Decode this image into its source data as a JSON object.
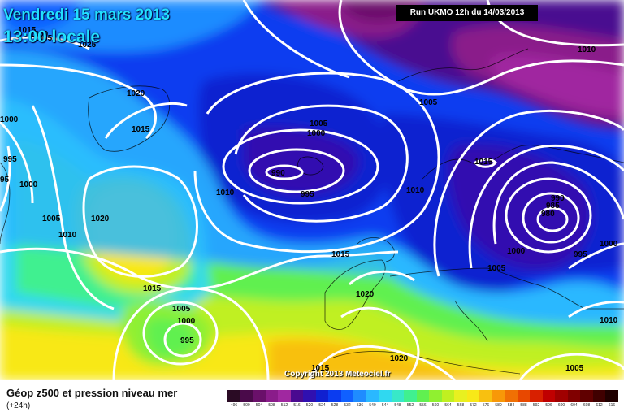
{
  "header": {
    "date": "Vendredi 15 mars 2013",
    "time": "13:00 locale",
    "run": "Run UKMO 12h du 14/03/2013"
  },
  "footer": {
    "title": "Géop z500 et pression niveau mer",
    "subtitle": "(+24h)",
    "copyright": "Copyright 2013 Meteociel.fr"
  },
  "legend": {
    "values": [
      "496",
      "500",
      "504",
      "508",
      "512",
      "516",
      "520",
      "524",
      "528",
      "532",
      "536",
      "540",
      "544",
      "548",
      "552",
      "556",
      "560",
      "564",
      "568",
      "572",
      "576",
      "580",
      "584",
      "588",
      "592",
      "596",
      "600",
      "604",
      "608",
      "612",
      "616"
    ],
    "colors": [
      "#2a0b24",
      "#4a0a4a",
      "#6a106a",
      "#8a1c8a",
      "#a028a0",
      "#4a0a90",
      "#3010b0",
      "#1020d0",
      "#0b3cf0",
      "#1060ff",
      "#1f8cff",
      "#2ab8ff",
      "#30d8f0",
      "#38e8c8",
      "#40f090",
      "#60f050",
      "#90f030",
      "#c0f020",
      "#e8f020",
      "#f8e818",
      "#f8c010",
      "#f89808",
      "#f07004",
      "#e84800",
      "#d82000",
      "#c00000",
      "#a00000",
      "#800000",
      "#600000",
      "#400000",
      "#200000"
    ]
  },
  "isobars": [
    "1025",
    "1015",
    "1020",
    "1015",
    "1000",
    "995",
    "95",
    "1000",
    "1005",
    "1010",
    "1020",
    "1015",
    "1005",
    "1000",
    "995",
    "990",
    "1005",
    "1000",
    "995",
    "1010",
    "1015",
    "1020",
    "1020",
    "1015",
    "1010",
    "1005",
    "1000",
    "990",
    "985",
    "980",
    "1015",
    "1000",
    "995",
    "1000",
    "1005",
    "1010",
    "1005",
    "1010",
    "1005"
  ]
}
